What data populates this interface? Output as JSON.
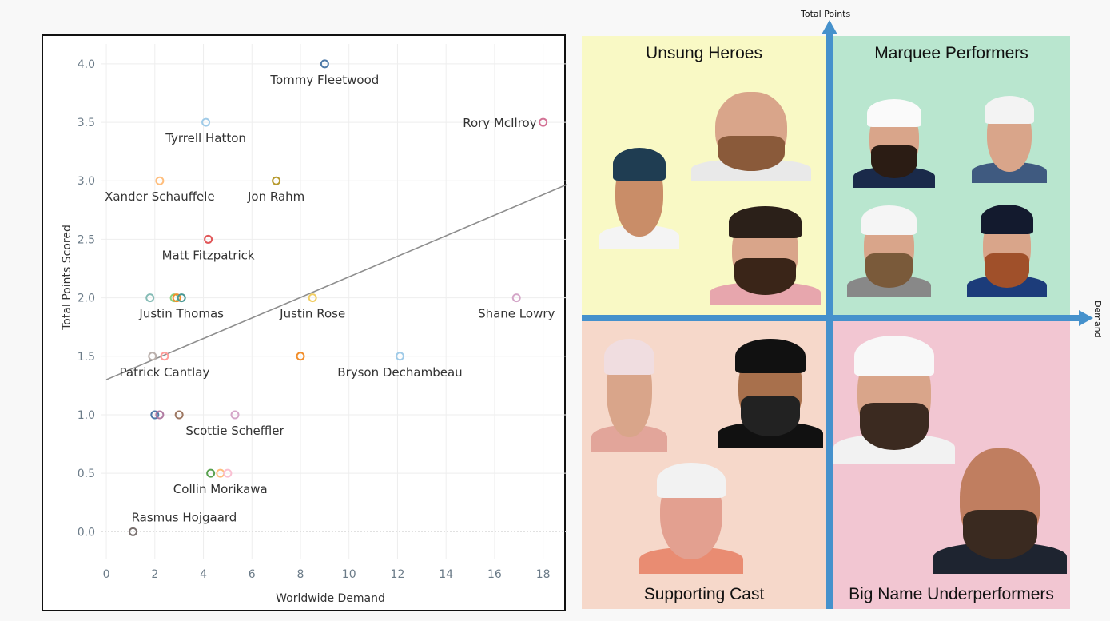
{
  "chart_data": {
    "type": "scatter",
    "xlabel": "Worldwide Demand",
    "ylabel": "Total Points Scored",
    "xlim": [
      -0.2,
      19
    ],
    "ylim": [
      -0.23,
      4.17
    ],
    "xticks": [
      "0",
      "2",
      "4",
      "6",
      "8",
      "10",
      "12",
      "14",
      "16",
      "18"
    ],
    "yticks": [
      "0.0",
      "0.5",
      "1.0",
      "1.5",
      "2.0",
      "2.5",
      "3.0",
      "3.5",
      "4.0"
    ],
    "grid": true,
    "trendline": {
      "x": [
        0,
        19
      ],
      "y": [
        1.3,
        2.97
      ],
      "color": "#8e8e8e"
    },
    "points": [
      {
        "x": 9.0,
        "y": 4.0,
        "label": "Tommy Fleetwood",
        "color": "#4e79a7"
      },
      {
        "x": 4.1,
        "y": 3.5,
        "label": "Tyrrell Hatton",
        "color": "#a0cbe8"
      },
      {
        "x": 18.0,
        "y": 3.5,
        "label": "Rory McIlroy",
        "color": "#d37295"
      },
      {
        "x": 2.2,
        "y": 3.0,
        "label": "Xander Schauffele",
        "color": "#ffbe7d"
      },
      {
        "x": 7.0,
        "y": 3.0,
        "label": "Jon Rahm",
        "color": "#b6992d"
      },
      {
        "x": 4.2,
        "y": 2.5,
        "label": "Matt Fitzpatrick",
        "color": "#e15759"
      },
      {
        "x": 1.8,
        "y": 2.0,
        "label": "",
        "color": "#86bcb6"
      },
      {
        "x": 2.8,
        "y": 2.0,
        "label": "",
        "color": "#8cd17d"
      },
      {
        "x": 2.9,
        "y": 2.0,
        "label": "",
        "color": "#f28e2b"
      },
      {
        "x": 3.1,
        "y": 2.0,
        "label": "Justin Thomas",
        "color": "#499894"
      },
      {
        "x": 8.5,
        "y": 2.0,
        "label": "Justin Rose",
        "color": "#f1ce63"
      },
      {
        "x": 16.9,
        "y": 2.0,
        "label": "Shane Lowry",
        "color": "#d4a6c8"
      },
      {
        "x": 1.9,
        "y": 1.5,
        "label": "",
        "color": "#bab0ac"
      },
      {
        "x": 2.4,
        "y": 1.5,
        "label": "Patrick Cantlay",
        "color": "#ff9d9a"
      },
      {
        "x": 8.0,
        "y": 1.5,
        "label": "",
        "color": "#f28e2b"
      },
      {
        "x": 12.1,
        "y": 1.5,
        "label": "Bryson Dechambeau",
        "color": "#a0cbe8"
      },
      {
        "x": 2.0,
        "y": 1.0,
        "label": "",
        "color": "#4e79a7"
      },
      {
        "x": 2.2,
        "y": 1.0,
        "label": "",
        "color": "#b07aa1"
      },
      {
        "x": 3.0,
        "y": 1.0,
        "label": "",
        "color": "#9d7660"
      },
      {
        "x": 5.3,
        "y": 1.0,
        "label": "Scottie Scheffler",
        "color": "#d4a6c8"
      },
      {
        "x": 4.3,
        "y": 0.5,
        "label": "",
        "color": "#59a14f"
      },
      {
        "x": 4.7,
        "y": 0.5,
        "label": "Collin Morikawa",
        "color": "#ffbe7d"
      },
      {
        "x": 5.0,
        "y": 0.5,
        "label": "",
        "color": "#fabfd2"
      },
      {
        "x": 1.1,
        "y": 0.0,
        "label": "Rasmus Hojgaard",
        "color": "#79706e"
      }
    ]
  },
  "matrix": {
    "y_axis_title": "Total Points",
    "x_axis_title": "Demand",
    "quadrants": {
      "top_left": {
        "title": "Unsung Heroes",
        "color": "#f9f9c5"
      },
      "top_right": {
        "title": "Marquee Performers",
        "color": "#b9e6cf"
      },
      "bottom_left": {
        "title": "Supporting Cast",
        "color": "#f6d8ca"
      },
      "bottom_right": {
        "title": "Big Name Underperformers",
        "color": "#f2c6d2"
      }
    },
    "axis_color": "#4591cc"
  }
}
